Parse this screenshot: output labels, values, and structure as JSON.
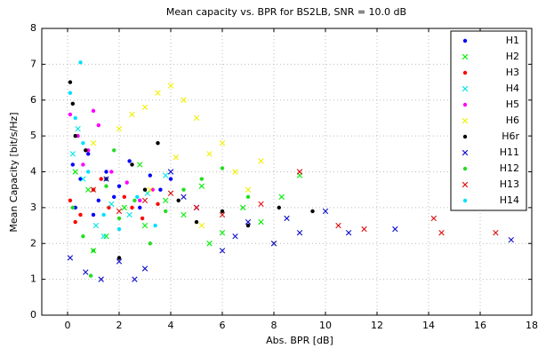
{
  "chart_data": {
    "type": "scatter",
    "title": "Mean capacity vs. BPR for BS2LB, SNR = 10.0 dB",
    "x_label": "Abs. BPR [dB]",
    "y_label": "Mean Capacity [bit/s/Hz]",
    "xlim": [
      -1,
      18
    ],
    "ylim": [
      0,
      8
    ],
    "xticks": [
      0,
      2,
      4,
      6,
      8,
      10,
      12,
      14,
      16,
      18
    ],
    "yticks": [
      0,
      1,
      2,
      3,
      4,
      5,
      6,
      7,
      8
    ],
    "grid": true,
    "legend": "upper right",
    "series": [
      {
        "name": "H1",
        "color": "#0000ff",
        "marker": "dot",
        "x": [
          0.2,
          0.5,
          0.8,
          1.2,
          1.5,
          2.0,
          2.4,
          2.8,
          3.2,
          3.6,
          4.0,
          0.3,
          1.0,
          1.8
        ],
        "values": [
          4.2,
          3.8,
          4.5,
          3.2,
          4.0,
          3.6,
          4.3,
          3.0,
          3.9,
          3.5,
          3.8,
          3.0,
          2.8,
          3.3
        ]
      },
      {
        "name": "H2",
        "color": "#00ee00",
        "marker": "x",
        "x": [
          0.3,
          0.8,
          1.5,
          2.2,
          3.0,
          3.8,
          4.5,
          5.2,
          6.0,
          6.8,
          7.5,
          8.3,
          9.0,
          1.0,
          2.8,
          5.5
        ],
        "values": [
          4.0,
          3.5,
          2.2,
          3.0,
          2.5,
          3.2,
          2.8,
          3.6,
          2.3,
          3.0,
          2.6,
          3.3,
          3.9,
          1.8,
          4.2,
          2.0
        ]
      },
      {
        "name": "H3",
        "color": "#ff0000",
        "marker": "dot",
        "x": [
          0.1,
          0.5,
          1.0,
          1.6,
          2.2,
          2.9,
          3.5,
          0.3,
          1.3,
          2.5
        ],
        "values": [
          3.2,
          2.8,
          3.5,
          3.0,
          3.3,
          2.7,
          3.1,
          2.6,
          3.8,
          3.0
        ]
      },
      {
        "name": "H4",
        "color": "#00e5e5",
        "marker": "x",
        "x": [
          0.2,
          0.6,
          1.1,
          1.7,
          2.4,
          3.1,
          3.8,
          0.4,
          1.4
        ],
        "values": [
          4.5,
          3.8,
          2.5,
          3.1,
          2.8,
          3.4,
          3.9,
          5.2,
          2.2
        ]
      },
      {
        "name": "H5",
        "color": "#ff00ff",
        "marker": "dot",
        "x": [
          0.1,
          0.4,
          0.8,
          1.2,
          1.7,
          2.3,
          0.6,
          1.0,
          2.8,
          3.3
        ],
        "values": [
          5.6,
          5.0,
          4.6,
          5.3,
          4.0,
          3.7,
          4.2,
          5.7,
          3.2,
          3.5
        ]
      },
      {
        "name": "H6",
        "color": "#f0f000",
        "marker": "x",
        "x": [
          1.0,
          2.0,
          3.0,
          3.5,
          4.0,
          4.5,
          5.0,
          5.5,
          6.0,
          6.5,
          7.0,
          7.5,
          8.0,
          3.2,
          4.2,
          2.5,
          5.2
        ],
        "values": [
          4.8,
          5.2,
          5.8,
          6.2,
          6.4,
          6.0,
          5.5,
          4.5,
          4.8,
          4.0,
          3.5,
          4.3,
          2.0,
          3.5,
          4.4,
          5.6,
          2.5
        ]
      },
      {
        "name": "H6r",
        "color": "#000000",
        "marker": "dot",
        "x": [
          0.1,
          0.3,
          0.7,
          1.5,
          2.5,
          3.5,
          4.3,
          5.0,
          6.0,
          7.0,
          8.2,
          9.5,
          2.0,
          3.0,
          0.2
        ],
        "values": [
          6.5,
          5.0,
          4.6,
          3.8,
          4.2,
          4.8,
          3.2,
          2.6,
          2.9,
          2.5,
          3.0,
          2.9,
          1.6,
          3.5,
          5.9
        ]
      },
      {
        "name": "H11",
        "color": "#1010cc",
        "marker": "x",
        "x": [
          0.1,
          0.7,
          1.3,
          2.0,
          3.0,
          4.0,
          5.0,
          6.0,
          7.0,
          8.0,
          9.0,
          10.0,
          10.9,
          12.7,
          17.2,
          1.5,
          2.6,
          4.5,
          6.5,
          8.5
        ],
        "values": [
          1.6,
          1.2,
          1.0,
          1.5,
          1.3,
          4.0,
          3.0,
          1.8,
          2.6,
          2.0,
          2.3,
          2.9,
          2.3,
          2.4,
          2.1,
          3.8,
          1.0,
          3.3,
          2.2,
          2.7
        ]
      },
      {
        "name": "H12",
        "color": "#22dd22",
        "marker": "dot",
        "x": [
          0.2,
          0.6,
          1.0,
          1.5,
          2.0,
          2.6,
          3.2,
          3.8,
          4.5,
          5.2,
          6.0,
          7.0,
          0.9,
          1.8
        ],
        "values": [
          3.0,
          2.2,
          1.8,
          3.6,
          2.7,
          3.2,
          2.0,
          2.9,
          3.5,
          3.8,
          4.1,
          3.3,
          1.1,
          4.6
        ]
      },
      {
        "name": "H13",
        "color": "#dd1111",
        "marker": "x",
        "x": [
          1.0,
          2.0,
          3.0,
          4.0,
          5.0,
          6.0,
          7.5,
          9.0,
          10.5,
          11.5,
          14.2,
          14.5,
          16.6
        ],
        "values": [
          3.5,
          2.9,
          3.2,
          3.4,
          3.0,
          2.8,
          3.1,
          4.0,
          2.5,
          2.4,
          2.7,
          2.3,
          2.3
        ]
      },
      {
        "name": "H14",
        "color": "#00e0ff",
        "marker": "dot",
        "x": [
          0.1,
          0.3,
          0.5,
          0.8,
          1.4,
          2.0,
          2.7,
          3.4,
          0.6
        ],
        "values": [
          6.2,
          5.5,
          7.05,
          4.0,
          2.8,
          2.4,
          3.3,
          2.5,
          4.8
        ]
      }
    ]
  }
}
